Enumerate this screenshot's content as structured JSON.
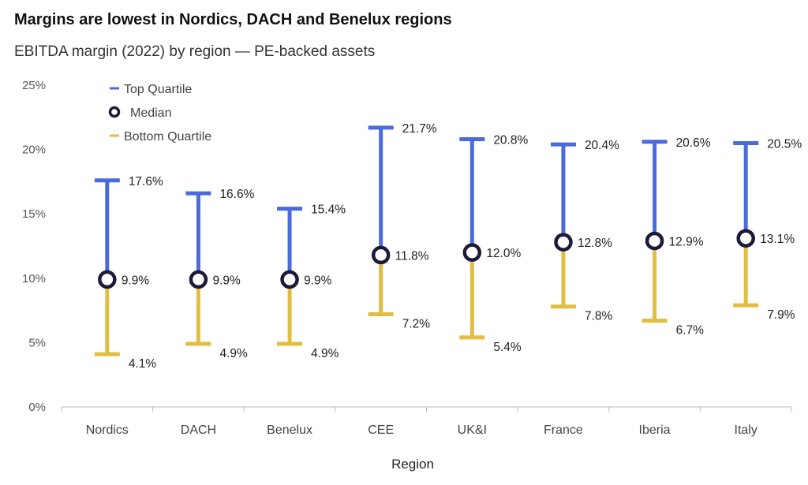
{
  "title": "Margins are lowest in Nordics, DACH and Benelux regions",
  "subtitle": "EBITDA margin (2022) by region — PE-backed assets",
  "colors": {
    "top": "#4b6bdc",
    "bottom": "#e1bd42",
    "median": "#1b1a3a",
    "axis": "#bbbbbb"
  },
  "chart_data": {
    "type": "range-dot",
    "xlabel": "Region",
    "ylabel": "",
    "ylim": [
      0,
      25
    ],
    "yticks": [
      0,
      5,
      10,
      15,
      20,
      25
    ],
    "ytick_labels": [
      "0%",
      "5%",
      "10%",
      "15%",
      "20%",
      "25%"
    ],
    "legend": {
      "position": "top-left",
      "entries": [
        "Top Quartile",
        "Median",
        "Bottom Quartile"
      ]
    },
    "categories": [
      "Nordics",
      "DACH",
      "Benelux",
      "CEE",
      "UK&I",
      "France",
      "Iberia",
      "Italy"
    ],
    "series": [
      {
        "name": "Top Quartile",
        "values": [
          17.6,
          16.6,
          15.4,
          21.7,
          20.8,
          20.4,
          20.6,
          20.5
        ],
        "labels": [
          "17.6%",
          "16.6%",
          "15.4%",
          "21.7%",
          "20.8%",
          "20.4%",
          "20.6%",
          "20.5%"
        ]
      },
      {
        "name": "Median",
        "values": [
          9.9,
          9.9,
          9.9,
          11.8,
          12.0,
          12.8,
          12.9,
          13.1
        ],
        "labels": [
          "9.9%",
          "9.9%",
          "9.9%",
          "11.8%",
          "12.0%",
          "12.8%",
          "12.9%",
          "13.1%"
        ]
      },
      {
        "name": "Bottom Quartile",
        "values": [
          4.1,
          4.9,
          4.9,
          7.2,
          5.4,
          7.8,
          6.7,
          7.9
        ],
        "labels": [
          "4.1%",
          "4.9%",
          "4.9%",
          "7.2%",
          "5.4%",
          "7.8%",
          "6.7%",
          "7.9%"
        ]
      }
    ]
  }
}
